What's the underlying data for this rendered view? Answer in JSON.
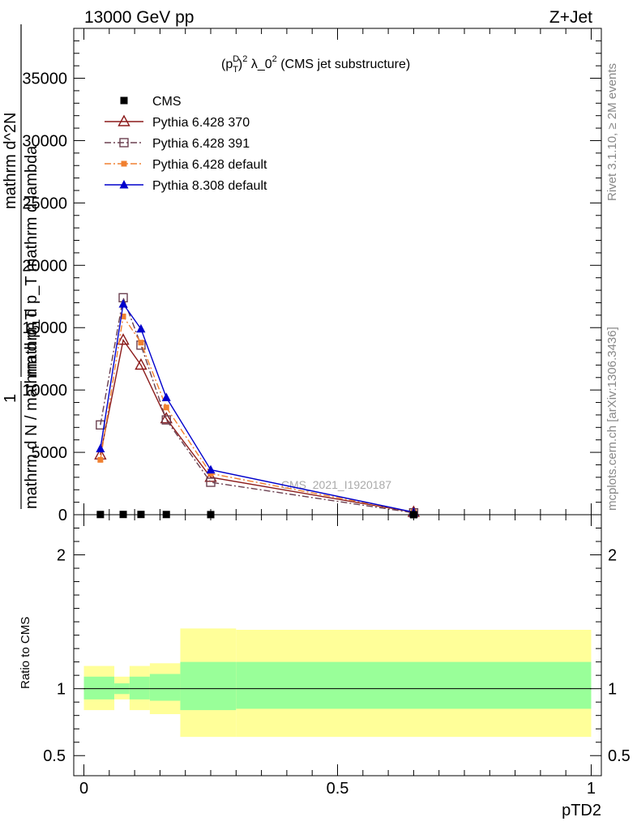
{
  "header": {
    "left": "13000 GeV pp",
    "right": "Z+Jet"
  },
  "side_labels": {
    "rivet": "Rivet 3.1.10, ≥ 2M events",
    "mcplots": "mcplots.cern.ch [arXiv:1306.3436]"
  },
  "chart_data": [
    {
      "type": "line",
      "panel": "main",
      "title": "(p_T^D)^2 λ_0^2 (CMS jet substructure)",
      "title_parts": {
        "open": "(p",
        "sup_d": "D",
        "sub_t": "T",
        "close": ")",
        "sup_2": "2",
        "lambda": " λ_0",
        "sup_2b": "2",
        "rest": " (CMS jet substructure)"
      },
      "ylabel_lines": [
        "mathrm d^2N",
        "mathrm d p_T mathrm d lambda",
        "1",
        "mathrm d N / mathrm d p_T"
      ],
      "watermark": "CMS_2021_I1920187",
      "xlim": [
        -0.02,
        1.02
      ],
      "ylim": [
        0,
        39000
      ],
      "yticks": [
        0,
        5000,
        10000,
        15000,
        20000,
        25000,
        30000,
        35000
      ],
      "ytick_labels": [
        "0",
        "5000",
        "10000",
        "15000",
        "20000",
        "25000",
        "30000",
        "35000"
      ],
      "legend_position": "top-left",
      "grid": false,
      "series": [
        {
          "name": "CMS",
          "color": "#000000",
          "marker": "square-filled",
          "line": "none",
          "x": [
            0.0325,
            0.0775,
            0.1125,
            0.1625,
            0.25,
            0.65
          ],
          "y": [
            15,
            20,
            20,
            15,
            8,
            1
          ]
        },
        {
          "name": "Pythia 6.428 370",
          "color": "#8b1a1a",
          "marker": "triangle-open",
          "line": "solid",
          "x": [
            0.0325,
            0.0775,
            0.1125,
            0.1625,
            0.25,
            0.65
          ],
          "y": [
            4800,
            14000,
            12000,
            7700,
            3000,
            200
          ]
        },
        {
          "name": "Pythia 6.428 391",
          "color": "#6b4050",
          "marker": "square-open",
          "line": "dashdot",
          "x": [
            0.0325,
            0.0775,
            0.1125,
            0.1625,
            0.25,
            0.65
          ],
          "y": [
            7200,
            17400,
            13600,
            7600,
            2600,
            150
          ]
        },
        {
          "name": "Pythia 6.428 default",
          "color": "#f08030",
          "marker": "square-filled-small",
          "line": "dashdot",
          "x": [
            0.0325,
            0.0775,
            0.1125,
            0.1625,
            0.25,
            0.65
          ],
          "y": [
            4400,
            15900,
            13800,
            8600,
            3300,
            200
          ]
        },
        {
          "name": "Pythia 8.308 default",
          "color": "#0000cc",
          "marker": "triangle-filled",
          "line": "solid",
          "x": [
            0.0325,
            0.0775,
            0.1125,
            0.1625,
            0.25,
            0.65
          ],
          "y": [
            5300,
            16900,
            14900,
            9400,
            3600,
            200
          ]
        }
      ]
    },
    {
      "type": "area",
      "panel": "ratio",
      "ylabel": "Ratio to CMS",
      "xlabel": "pTD2",
      "xlim": [
        -0.02,
        1.02
      ],
      "ylim": [
        0.35,
        2.3
      ],
      "yticks": [
        0.5,
        1,
        2
      ],
      "ytick_labels": [
        "0.5",
        "1",
        "2"
      ],
      "xticks": [
        0,
        0.5,
        1
      ],
      "xtick_labels": [
        "0",
        "0.5",
        "1"
      ],
      "reference_line": 1,
      "bins": [
        {
          "x0": 0.0,
          "x1": 0.06,
          "inner_lo": 0.92,
          "inner_hi": 1.09,
          "outer_lo": 0.84,
          "outer_hi": 1.17
        },
        {
          "x0": 0.06,
          "x1": 0.09,
          "inner_lo": 0.96,
          "inner_hi": 1.04,
          "outer_lo": 0.92,
          "outer_hi": 1.09
        },
        {
          "x0": 0.09,
          "x1": 0.13,
          "inner_lo": 0.92,
          "inner_hi": 1.09,
          "outer_lo": 0.84,
          "outer_hi": 1.17
        },
        {
          "x0": 0.13,
          "x1": 0.19,
          "inner_lo": 0.91,
          "inner_hi": 1.11,
          "outer_lo": 0.81,
          "outer_hi": 1.19
        },
        {
          "x0": 0.19,
          "x1": 0.3,
          "inner_lo": 0.84,
          "inner_hi": 1.2,
          "outer_lo": 0.64,
          "outer_hi": 1.45
        },
        {
          "x0": 0.3,
          "x1": 1.0,
          "inner_lo": 0.85,
          "inner_hi": 1.2,
          "outer_lo": 0.64,
          "outer_hi": 1.44
        }
      ],
      "band_colors": {
        "inner": "#99ff99",
        "outer": "#ffff99"
      }
    }
  ]
}
